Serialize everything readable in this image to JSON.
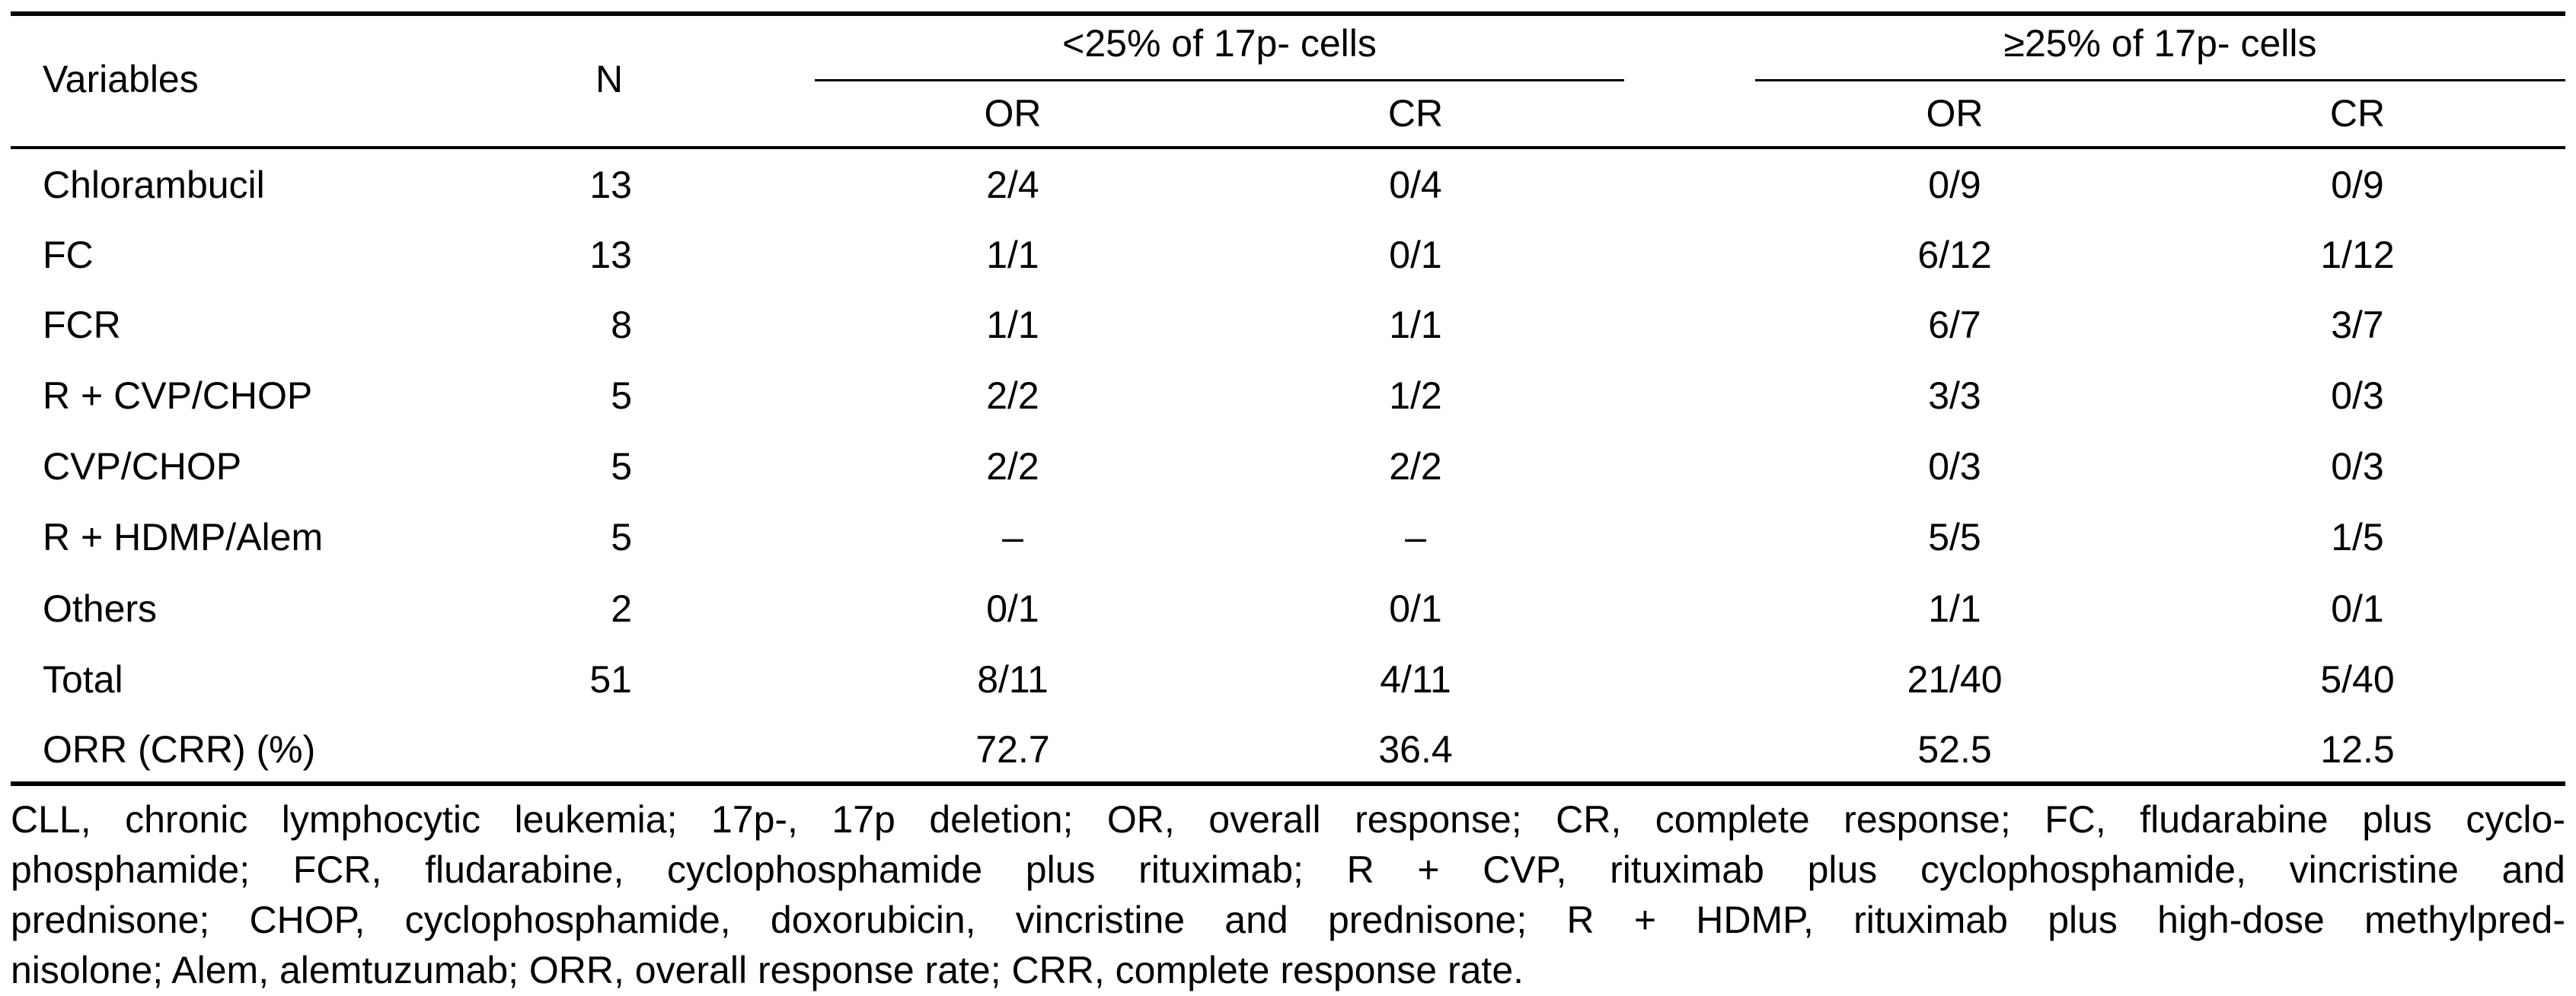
{
  "table": {
    "header": {
      "variables": "Variables",
      "n": "N",
      "group_low": "<25% of 17p- cells",
      "group_high": "≥25% of 17p- cells",
      "or": "OR",
      "cr": "CR"
    },
    "rows": [
      {
        "variable": "Chlorambucil",
        "n": "13",
        "low_or": "2/4",
        "low_cr": "0/4",
        "high_or": "0/9",
        "high_cr": "0/9"
      },
      {
        "variable": "FC",
        "n": "13",
        "low_or": "1/1",
        "low_cr": "0/1",
        "high_or": "6/12",
        "high_cr": "1/12"
      },
      {
        "variable": "FCR",
        "n": "8",
        "low_or": "1/1",
        "low_cr": "1/1",
        "high_or": "6/7",
        "high_cr": "3/7"
      },
      {
        "variable": "R + CVP/CHOP",
        "n": "5",
        "low_or": "2/2",
        "low_cr": "1/2",
        "high_or": "3/3",
        "high_cr": "0/3"
      },
      {
        "variable": "CVP/CHOP",
        "n": "5",
        "low_or": "2/2",
        "low_cr": "2/2",
        "high_or": "0/3",
        "high_cr": "0/3"
      },
      {
        "variable": "R + HDMP/Alem",
        "n": "5",
        "low_or": "–",
        "low_cr": "–",
        "high_or": "5/5",
        "high_cr": "1/5"
      },
      {
        "variable": "Others",
        "n": "2",
        "low_or": "0/1",
        "low_cr": "0/1",
        "high_or": "1/1",
        "high_cr": "0/1"
      },
      {
        "variable": "Total",
        "n": "51",
        "low_or": "8/11",
        "low_cr": "4/11",
        "high_or": "21/40",
        "high_cr": "5/40"
      },
      {
        "variable": "ORR (CRR) (%)",
        "n": "",
        "low_or": "72.7",
        "low_cr": "36.4",
        "high_or": "52.5",
        "high_cr": "12.5"
      }
    ]
  },
  "footnote": {
    "lines": [
      "CLL, chronic lymphocytic leukemia; 17p-, 17p deletion; OR, overall response; CR, complete response; FC, fludarabine plus cyclo-",
      "phosphamide; FCR, fludarabine, cyclophosphamide plus rituximab; R + CVP, rituximab plus cyclophosphamide, vincristine and",
      "prednisone; CHOP, cyclophosphamide, doxorubicin, vincristine and prednisone; R + HDMP, rituximab plus high-dose methylpred-",
      "nisolone; Alem, alemtuzumab; ORR, overall response rate; CRR, complete response rate."
    ]
  }
}
